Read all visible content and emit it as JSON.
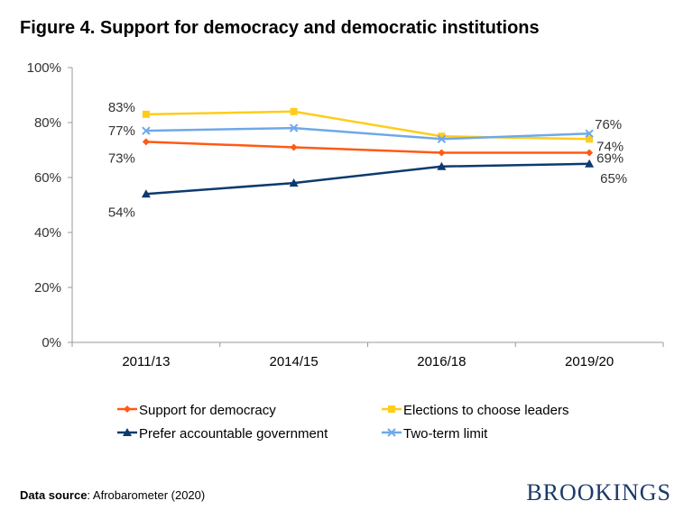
{
  "title": "Figure 4. Support for democracy and democratic institutions",
  "source_label": "Data source",
  "source_text": ": Afrobarometer (2020)",
  "logo": "BROOKINGS",
  "chart_data": {
    "type": "line",
    "title": "Figure 4. Support for democracy and democratic institutions",
    "categories": [
      "2011/13",
      "2014/15",
      "2016/18",
      "2019/20"
    ],
    "ylim": [
      0,
      100
    ],
    "yticks": [
      0,
      20,
      40,
      60,
      80,
      100
    ],
    "ytick_labels": [
      "0%",
      "20%",
      "40%",
      "60%",
      "80%",
      "100%"
    ],
    "grid": false,
    "legend_placement": "bottom",
    "series": [
      {
        "name": "Support for democracy",
        "values": [
          73,
          71,
          69,
          69
        ],
        "color": "#ff5a14",
        "marker": "diamond",
        "labels": [
          "73%",
          null,
          null,
          "69%"
        ]
      },
      {
        "name": "Elections to choose leaders",
        "values": [
          83,
          84,
          75,
          74
        ],
        "color": "#ffcc1a",
        "marker": "square",
        "labels": [
          "83%",
          null,
          null,
          "74%"
        ]
      },
      {
        "name": "Prefer accountable government",
        "values": [
          54,
          58,
          64,
          65
        ],
        "color": "#0d3a6e",
        "marker": "triangle",
        "labels": [
          "54%",
          null,
          null,
          "65%"
        ]
      },
      {
        "name": "Two-term limit",
        "values": [
          77,
          78,
          74,
          76
        ],
        "color": "#6fa8e8",
        "marker": "x",
        "labels": [
          "77%",
          null,
          null,
          "76%"
        ]
      }
    ]
  }
}
